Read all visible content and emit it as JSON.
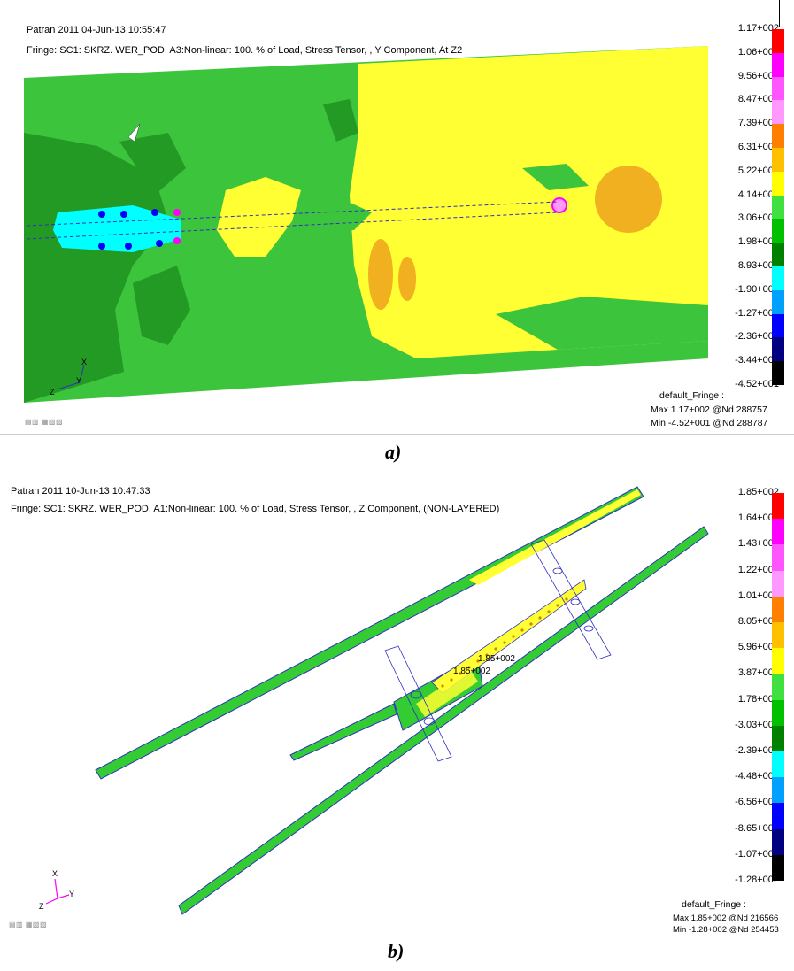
{
  "panel_a": {
    "title_line": "Patran 2011 04-Jun-13 10:55:47",
    "fringe_line": "Fringe: SC1: SKRZ. WER_POD, A3:Non-linear: 100. % of Load, Stress Tensor, , Y Component, At Z2",
    "legend_ticks": [
      "1.17+002",
      "1.06+002",
      "9.56+001",
      "8.47+001",
      "7.39+001",
      "6.31+001",
      "5.22+001",
      "4.14+001",
      "3.06+001",
      "1.98+001",
      "8.93+000",
      "-1.90+000",
      "-1.27+001",
      "-2.36+001",
      "-3.44+001",
      "-4.52+001"
    ],
    "legend_colors": [
      "#ff0000",
      "#ff00ff",
      "#ff55ff",
      "#ff99ff",
      "#ff8000",
      "#ffc000",
      "#ffff00",
      "#40e040",
      "#00c000",
      "#008000",
      "#00ffff",
      "#00a0ff",
      "#0000ff",
      "#000080",
      "#000000"
    ],
    "fringe_name": "default_Fringe :",
    "max_line": "Max 1.17+002 @Nd 288757",
    "min_line": "Min -4.52+001 @Nd 288787",
    "axis_x": "X",
    "axis_z": "Z",
    "axis_y": "Y",
    "caption": "a)"
  },
  "panel_b": {
    "title_line": "Patran 2011 10-Jun-13 10:47:33",
    "fringe_line": "Fringe: SC1: SKRZ. WER_POD, A1:Non-linear: 100. % of Load, Stress Tensor, , Z Component, (NON-LAYERED)",
    "legend_ticks": [
      "1.85+002",
      "1.64+002",
      "1.43+002",
      "1.22+002",
      "1.01+002",
      "8.05+001",
      "5.96+001",
      "3.87+001",
      "1.78+001",
      "-3.03+000",
      "-2.39+001",
      "-4.48+001",
      "-6.56+001",
      "-8.65+001",
      "-1.07+002",
      "-1.28+002"
    ],
    "legend_colors": [
      "#ff0000",
      "#ff00ff",
      "#ff55ff",
      "#ff99ff",
      "#ff8000",
      "#ffc000",
      "#ffff00",
      "#40e040",
      "#00c000",
      "#008000",
      "#00ffff",
      "#00a0ff",
      "#0000ff",
      "#000080",
      "#000000"
    ],
    "fringe_name": "default_Fringe :",
    "max_line": "Max 1.85+002 @Nd 216566",
    "min_line": "Min -1.28+002 @Nd 254453",
    "model_label_1": "1.85+002",
    "model_label_2": "1.85+002",
    "axis_x": "X",
    "axis_z": "Z",
    "axis_y": "Y",
    "caption": "b)"
  },
  "colors": {
    "green": "#33cc33",
    "dark_green": "#2e9e2e",
    "yellow": "#ffff33",
    "orange": "#f0b020",
    "cyan": "#00ffff",
    "blue_outline": "#3030c0"
  }
}
